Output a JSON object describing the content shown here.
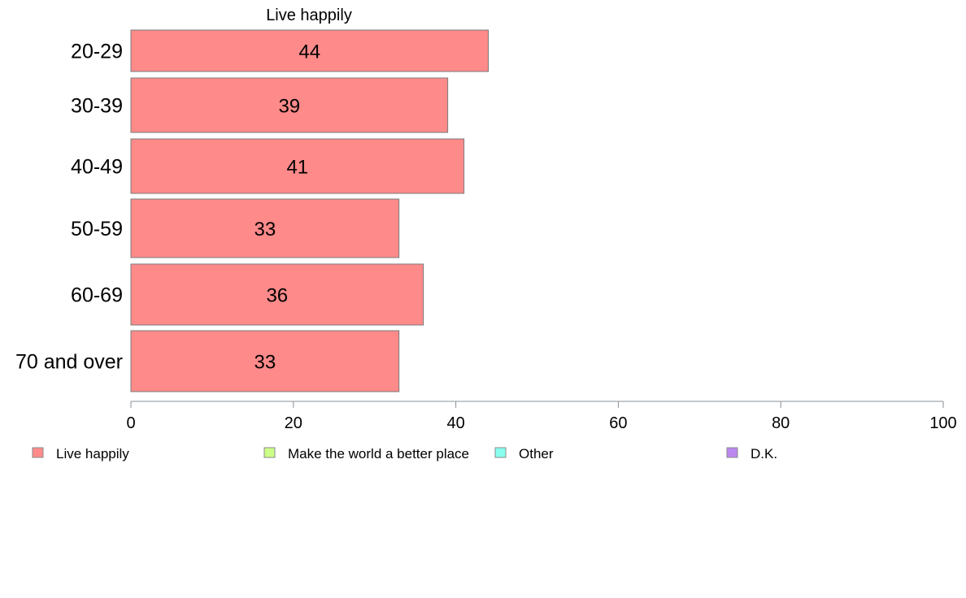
{
  "chart_data": {
    "type": "bar",
    "orientation": "horizontal",
    "title": "Live happily",
    "categories": [
      "20-29",
      "30-39",
      "40-49",
      "50-59",
      "60-69",
      "70 and over"
    ],
    "series": [
      {
        "name": "Live happily",
        "values": [
          44,
          39,
          41,
          33,
          36,
          33
        ],
        "color": "#ff8a8a"
      }
    ],
    "bar_labels": [
      "44",
      "39",
      "41",
      "33",
      "36",
      "33"
    ],
    "xlim": [
      0,
      100
    ],
    "x_ticks": [
      0,
      20,
      40,
      60,
      80,
      100
    ],
    "x_tick_labels": [
      "0",
      "20",
      "40",
      "60",
      "80",
      "100"
    ],
    "legend": [
      {
        "label": "Live happily",
        "color": "#ff8a8a"
      },
      {
        "label": "Make the world a better place",
        "color": "#ccff88"
      },
      {
        "label": "Other",
        "color": "#88ffee"
      },
      {
        "label": "D.K.",
        "color": "#bb88ee"
      }
    ],
    "legend_position": "bottom",
    "grid": false
  }
}
